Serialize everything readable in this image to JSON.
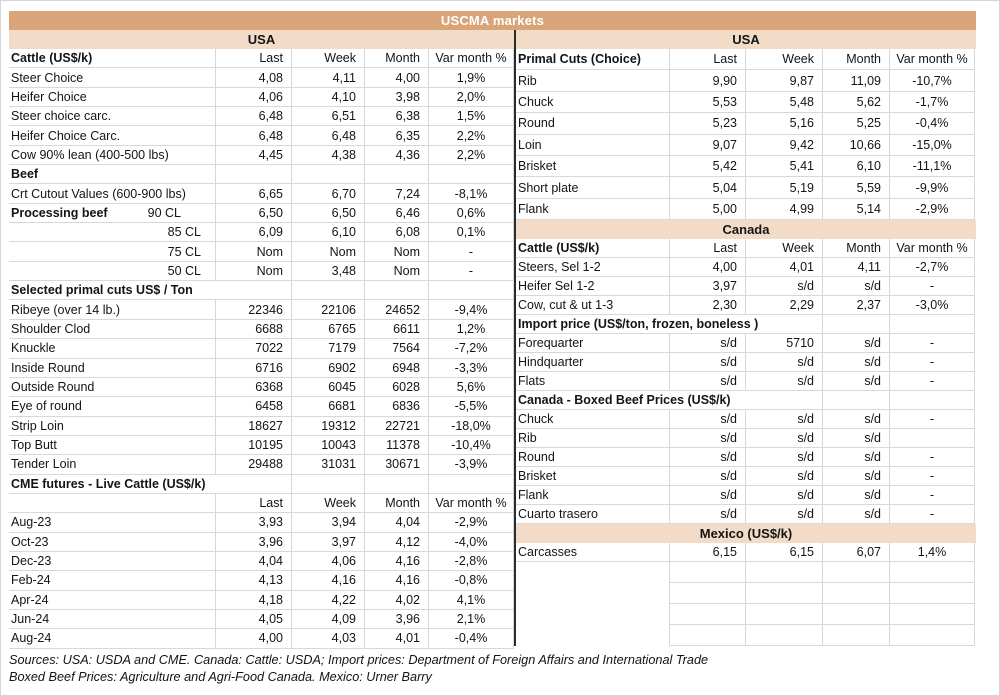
{
  "title": "USCMA markets",
  "colors": {
    "title_band": "#D9A478",
    "section_band": "#F2DCC8"
  },
  "columns": [
    "Last",
    "Week",
    "Month",
    "Var month %"
  ],
  "left": {
    "rows": [
      {
        "t": "band",
        "label": "USA"
      },
      {
        "t": "head",
        "label": "Cattle (US$/k)"
      },
      {
        "t": "data",
        "label": "Steer Choice",
        "v": [
          "4,08",
          "4,11",
          "4,00",
          "1,9%"
        ]
      },
      {
        "t": "data",
        "label": "Heifer Choice",
        "v": [
          "4,06",
          "4,10",
          "3,98",
          "2,0%"
        ]
      },
      {
        "t": "data",
        "label": "Steer choice carc.",
        "v": [
          "6,48",
          "6,51",
          "6,38",
          "1,5%"
        ]
      },
      {
        "t": "data",
        "label": "Heifer Choice Carc.",
        "v": [
          "6,48",
          "6,48",
          "6,35",
          "2,2%"
        ]
      },
      {
        "t": "data",
        "label": "Cow 90% lean (400-500 lbs)",
        "v": [
          "4,45",
          "4,38",
          "4,36",
          "2,2%"
        ]
      },
      {
        "t": "section",
        "label": "Beef",
        "span": 1
      },
      {
        "t": "data",
        "label": "Crt Cutout Values (600-900 lbs)",
        "v": [
          "6,65",
          "6,70",
          "7,24",
          "-8,1%"
        ]
      },
      {
        "t": "split",
        "label": "Processing beef",
        "label2": "90 CL",
        "v": [
          "6,50",
          "6,50",
          "6,46",
          "0,6%"
        ]
      },
      {
        "t": "rdata",
        "label": "85 CL",
        "v": [
          "6,09",
          "6,10",
          "6,08",
          "0,1%"
        ]
      },
      {
        "t": "rdata",
        "label": "75 CL",
        "v": [
          "Nom",
          "Nom",
          "Nom",
          "-"
        ]
      },
      {
        "t": "rdata",
        "label": "50 CL",
        "v": [
          "Nom",
          "3,48",
          "Nom",
          "-"
        ]
      },
      {
        "t": "section",
        "label": "Selected primal cuts US$ / Ton",
        "span": 2
      },
      {
        "t": "data",
        "label": "Ribeye (over 14 lb.)",
        "v": [
          "22346",
          "22106",
          "24652",
          "-9,4%"
        ]
      },
      {
        "t": "data",
        "label": "Shoulder Clod",
        "v": [
          "6688",
          "6765",
          "6611",
          "1,2%"
        ]
      },
      {
        "t": "data",
        "label": "Knuckle",
        "v": [
          "7022",
          "7179",
          "7564",
          "-7,2%"
        ]
      },
      {
        "t": "data",
        "label": "Inside Round",
        "v": [
          "6716",
          "6902",
          "6948",
          "-3,3%"
        ]
      },
      {
        "t": "data",
        "label": "Outside Round",
        "v": [
          "6368",
          "6045",
          "6028",
          "5,6%"
        ]
      },
      {
        "t": "data",
        "label": "Eye of round",
        "v": [
          "6458",
          "6681",
          "6836",
          "-5,5%"
        ]
      },
      {
        "t": "data",
        "label": "Strip Loin",
        "v": [
          "18627",
          "19312",
          "22721",
          "-18,0%"
        ]
      },
      {
        "t": "data",
        "label": "Top Butt",
        "v": [
          "10195",
          "10043",
          "11378",
          "-10,4%"
        ]
      },
      {
        "t": "data",
        "label": "Tender Loin",
        "v": [
          "29488",
          "31031",
          "30671",
          "-3,9%"
        ]
      },
      {
        "t": "section",
        "label": "CME futures - Live Cattle (US$/k)",
        "span": 2
      },
      {
        "t": "head",
        "label": ""
      },
      {
        "t": "data",
        "label": "Aug-23",
        "v": [
          "3,93",
          "3,94",
          "4,04",
          "-2,9%"
        ]
      },
      {
        "t": "data",
        "label": "Oct-23",
        "v": [
          "3,96",
          "3,97",
          "4,12",
          "-4,0%"
        ]
      },
      {
        "t": "data",
        "label": "Dec-23",
        "v": [
          "4,04",
          "4,06",
          "4,16",
          "-2,8%"
        ]
      },
      {
        "t": "data",
        "label": "Feb-24",
        "v": [
          "4,13",
          "4,16",
          "4,16",
          "-0,8%"
        ]
      },
      {
        "t": "data",
        "label": "Apr-24",
        "v": [
          "4,18",
          "4,22",
          "4,02",
          "4,1%"
        ]
      },
      {
        "t": "data",
        "label": "Jun-24",
        "v": [
          "4,05",
          "4,09",
          "3,96",
          "2,1%"
        ]
      },
      {
        "t": "data",
        "label": "Aug-24",
        "v": [
          "4,00",
          "4,03",
          "4,01",
          "-0,4%"
        ]
      }
    ]
  },
  "right": {
    "rows": [
      {
        "t": "band",
        "label": "USA"
      },
      {
        "t": "head",
        "label": "Primal Cuts (Choice)"
      },
      {
        "t": "data",
        "label": "Rib",
        "v": [
          "9,90",
          "9,87",
          "11,09",
          "-10,7%"
        ]
      },
      {
        "t": "data",
        "label": "Chuck",
        "v": [
          "5,53",
          "5,48",
          "5,62",
          "-1,7%"
        ]
      },
      {
        "t": "data",
        "label": "Round",
        "v": [
          "5,23",
          "5,16",
          "5,25",
          "-0,4%"
        ]
      },
      {
        "t": "data",
        "label": "Loin",
        "v": [
          "9,07",
          "9,42",
          "10,66",
          "-15,0%"
        ]
      },
      {
        "t": "data",
        "label": "Brisket",
        "v": [
          "5,42",
          "5,41",
          "6,10",
          "-11,1%"
        ]
      },
      {
        "t": "data",
        "label": "Short plate",
        "v": [
          "5,04",
          "5,19",
          "5,59",
          "-9,9%"
        ]
      },
      {
        "t": "data",
        "label": "Flank",
        "v": [
          "5,00",
          "4,99",
          "5,14",
          "-2,9%"
        ]
      },
      {
        "t": "band",
        "label": "Canada"
      },
      {
        "t": "head",
        "label": "Cattle (US$/k)"
      },
      {
        "t": "data",
        "label": "Steers, Sel 1-2",
        "v": [
          "4,00",
          "4,01",
          "4,11",
          "-2,7%"
        ]
      },
      {
        "t": "data",
        "label": "Heifer Sel 1-2",
        "v": [
          "3,97",
          "s/d",
          "s/d",
          "-"
        ]
      },
      {
        "t": "data",
        "label": "Cow, cut & ut 1-3",
        "v": [
          "2,30",
          "2,29",
          "2,37",
          "-3,0%"
        ]
      },
      {
        "t": "section",
        "label": "Import price (US$/ton, frozen, boneless )",
        "span": 3
      },
      {
        "t": "data",
        "label": "Forequarter",
        "v": [
          "s/d",
          "5710",
          "s/d",
          "-"
        ]
      },
      {
        "t": "data",
        "label": "Hindquarter",
        "v": [
          "s/d",
          "s/d",
          "s/d",
          "-"
        ]
      },
      {
        "t": "data",
        "label": "Flats",
        "v": [
          "s/d",
          "s/d",
          "s/d",
          "-"
        ]
      },
      {
        "t": "section",
        "label": "Canada - Boxed Beef Prices (US$/k)",
        "span": 3
      },
      {
        "t": "data",
        "label": "Chuck",
        "v": [
          "s/d",
          "s/d",
          "s/d",
          "-"
        ]
      },
      {
        "t": "data",
        "label": "Rib",
        "v": [
          "s/d",
          "s/d",
          "s/d",
          ""
        ]
      },
      {
        "t": "data",
        "label": "Round",
        "v": [
          "s/d",
          "s/d",
          "s/d",
          "-"
        ]
      },
      {
        "t": "data",
        "label": "Brisket",
        "v": [
          "s/d",
          "s/d",
          "s/d",
          "-"
        ]
      },
      {
        "t": "data",
        "label": "Flank",
        "v": [
          "s/d",
          "s/d",
          "s/d",
          "-"
        ]
      },
      {
        "t": "data",
        "label": "Cuarto trasero",
        "v": [
          "s/d",
          "s/d",
          "s/d",
          "-"
        ]
      },
      {
        "t": "band",
        "label": "Mexico (US$/k)"
      },
      {
        "t": "data",
        "label": "Carcasses",
        "v": [
          "6,15",
          "6,15",
          "6,07",
          "1,4%"
        ]
      },
      {
        "t": "empty"
      },
      {
        "t": "empty"
      },
      {
        "t": "empty"
      },
      {
        "t": "empty"
      }
    ]
  },
  "footer": {
    "line1": "Sources: USA: USDA and CME. Canada: Cattle: USDA; Import prices: Department of Foreign Affairs and International Trade",
    "line2": "Boxed Beef Prices: Agriculture and Agri-Food Canada. Mexico: Urner Barry"
  }
}
